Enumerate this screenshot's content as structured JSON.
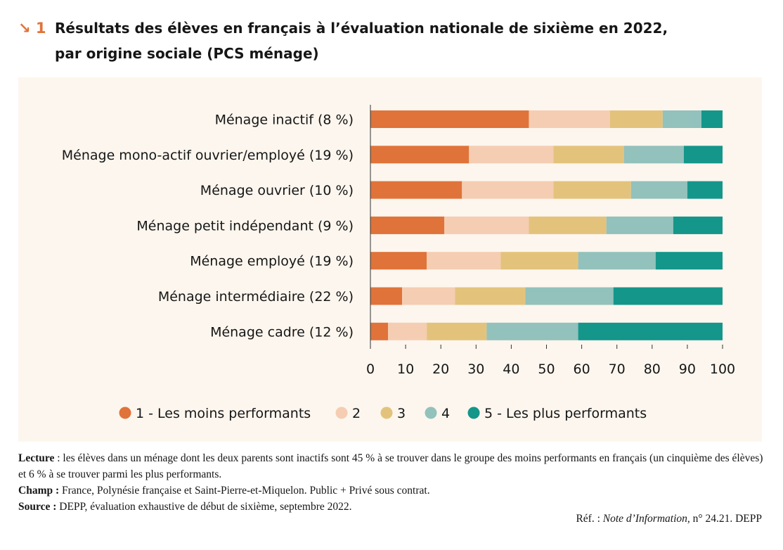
{
  "figure": {
    "number": "↘ 1",
    "title_line1": "Résultats des élèves en français à l’évaluation nationale de sixième en 2022,",
    "title_line2": "par origine sociale (PCS ménage)"
  },
  "chart_data": {
    "type": "bar",
    "orientation": "horizontal",
    "stacked": true,
    "categories": [
      "Ménage inactif (8 %)",
      "Ménage mono-actif ouvrier/employé (19 %)",
      "Ménage ouvrier (10 %)",
      "Ménage petit indépendant (9 %)",
      "Ménage employé (19 %)",
      "Ménage intermédiaire (22 %)",
      "Ménage cadre (12 %)"
    ],
    "series": [
      {
        "name": "1 - Les moins performants",
        "color": "#e0733a",
        "values": [
          45,
          28,
          26,
          21,
          16,
          9,
          5
        ]
      },
      {
        "name": "2",
        "color": "#f5cdb2",
        "values": [
          23,
          24,
          26,
          24,
          21,
          15,
          11
        ]
      },
      {
        "name": "3",
        "color": "#e3c37c",
        "values": [
          15,
          20,
          22,
          22,
          22,
          20,
          17
        ]
      },
      {
        "name": "4",
        "color": "#93c1bb",
        "values": [
          11,
          17,
          16,
          19,
          22,
          25,
          26
        ]
      },
      {
        "name": "5 - Les plus performants",
        "color": "#14968a",
        "values": [
          6,
          11,
          10,
          14,
          19,
          31,
          41
        ]
      }
    ],
    "xlim": [
      0,
      100
    ],
    "xticks": [
      "0",
      "10",
      "20",
      "30",
      "40",
      "50",
      "60",
      "70",
      "80",
      "90",
      "100"
    ],
    "legend_position": "bottom",
    "grid": false
  },
  "notes": {
    "lecture_label": "Lecture",
    "lecture_text": " : les élèves dans un ménage dont les deux parents sont inactifs sont 45 % à se trouver dans le groupe des moins performants en français (un cinquième des élèves) et 6 % à se trouver parmi les plus performants.",
    "champ_label": "Champ :",
    "champ_text": " France, Polynésie française et Saint-Pierre-et-Miquelon. Public + Privé sous contrat.",
    "source_label": "Source :",
    "source_text": " DEPP, évaluation exhaustive de début de sixième, septembre 2022.",
    "ref_prefix": "Réf. : ",
    "ref_title": "Note d’Information,",
    "ref_suffix": " n° 24.21. DEPP"
  }
}
